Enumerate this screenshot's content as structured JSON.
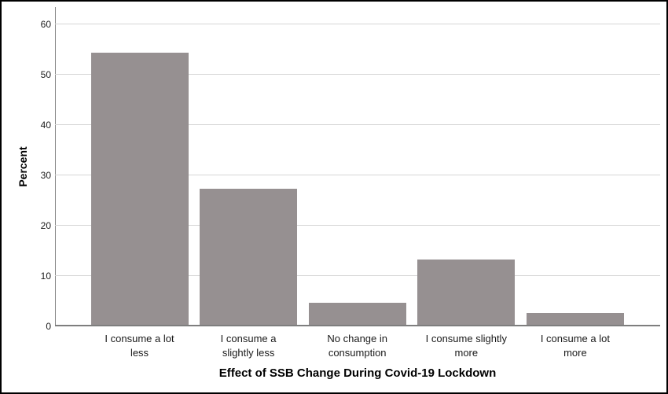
{
  "figure": {
    "background_color": "#ffffff",
    "frame_color": "#000000"
  },
  "chart_data": {
    "type": "bar",
    "title": "",
    "xlabel": "Effect of SSB Change During Covid-19 Lockdown",
    "ylabel": "Percent",
    "categories": [
      "I consume a lot less",
      "I consume a slightly less",
      "No change in consumption",
      "I consume slightly more",
      "I consume a lot more"
    ],
    "category_lines": [
      [
        "I consume a lot",
        "less"
      ],
      [
        "I consume a",
        "slightly less"
      ],
      [
        "No change in",
        "consumption"
      ],
      [
        "I consume slightly",
        "more"
      ],
      [
        "I consume a lot",
        "more"
      ]
    ],
    "values": [
      54,
      27,
      4.3,
      13,
      2.3
    ],
    "yticks": [
      0,
      10,
      20,
      30,
      40,
      50,
      60
    ],
    "ylim": [
      0,
      63.4
    ],
    "grid": "horizontal",
    "legend": "none",
    "bar_color": "#969091",
    "gridline_color": "#d6d6d6",
    "axis_line_color": "#8a8a8a",
    "text_color": "#1a1a1a"
  }
}
